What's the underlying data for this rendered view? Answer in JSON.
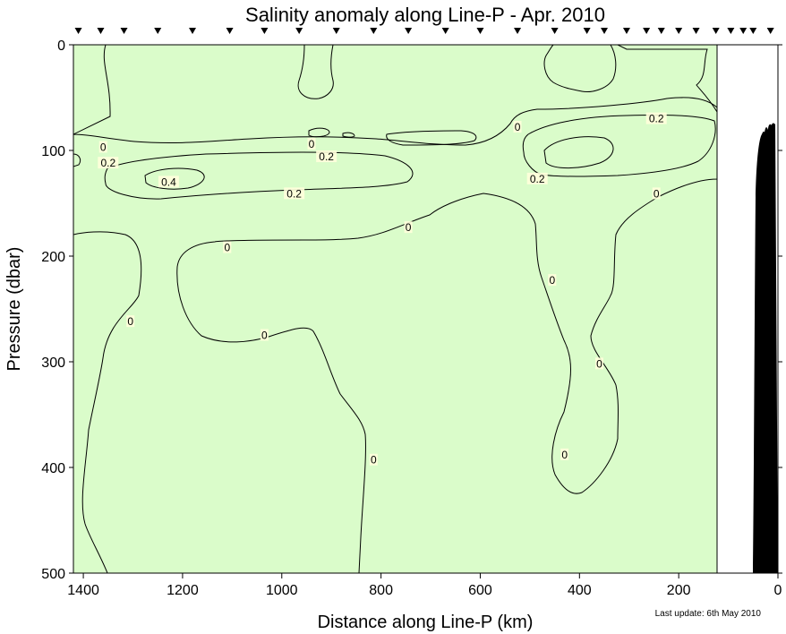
{
  "chart_data": {
    "type": "heatmap",
    "title": "Salinity anomaly along Line-P - Apr. 2010",
    "xlabel": "Distance along Line-P (km)",
    "ylabel": "Pressure (dbar)",
    "xlim": [
      1420,
      0
    ],
    "ylim": [
      0,
      500
    ],
    "x_ticks": [
      1400,
      1200,
      1000,
      800,
      600,
      400,
      200,
      0
    ],
    "y_ticks": [
      0,
      100,
      200,
      300,
      400,
      500
    ],
    "station_markers_km": [
      1410,
      1365,
      1318,
      1250,
      1180,
      1105,
      1035,
      965,
      890,
      815,
      745,
      670,
      600,
      525,
      450,
      385,
      350,
      305,
      265,
      235,
      200,
      165,
      125,
      95,
      70,
      50,
      15
    ],
    "data_extent_km": [
      1420,
      125
    ],
    "contour_levels": [
      -0.2,
      0,
      0.2,
      0.4
    ],
    "level_colors": {
      "below_-0.2": "#b0f29c",
      "-0.2_to_0": "#dafcca",
      "0_to_0.2": "#ffffdb",
      "0.2_to_0.4": "#fefab4",
      "above_0.4": "#fdf689"
    },
    "contour_labels": [
      {
        "text": "0",
        "x": 1360,
        "y": 97
      },
      {
        "text": "0.2",
        "x": 1350,
        "y": 112
      },
      {
        "text": "0.4",
        "x": 1228,
        "y": 130
      },
      {
        "text": "0",
        "x": 940,
        "y": 94
      },
      {
        "text": "0.2",
        "x": 910,
        "y": 106
      },
      {
        "text": "0.2",
        "x": 975,
        "y": 141
      },
      {
        "text": "0",
        "x": 1110,
        "y": 192
      },
      {
        "text": "0",
        "x": 1035,
        "y": 275
      },
      {
        "text": "0",
        "x": 1305,
        "y": 262
      },
      {
        "text": "0",
        "x": 815,
        "y": 393
      },
      {
        "text": "0",
        "x": 745,
        "y": 173
      },
      {
        "text": "0",
        "x": 525,
        "y": 78
      },
      {
        "text": "0.2",
        "x": 485,
        "y": 127
      },
      {
        "text": "0.2",
        "x": 245,
        "y": 70
      },
      {
        "text": "0",
        "x": 245,
        "y": 141
      },
      {
        "text": "0",
        "x": 455,
        "y": 223
      },
      {
        "text": "0",
        "x": 360,
        "y": 302
      },
      {
        "text": "0",
        "x": 430,
        "y": 388
      }
    ],
    "bathymetry_color": "#000000"
  },
  "footer": {
    "last_update": "Last update: 6th May 2010"
  }
}
